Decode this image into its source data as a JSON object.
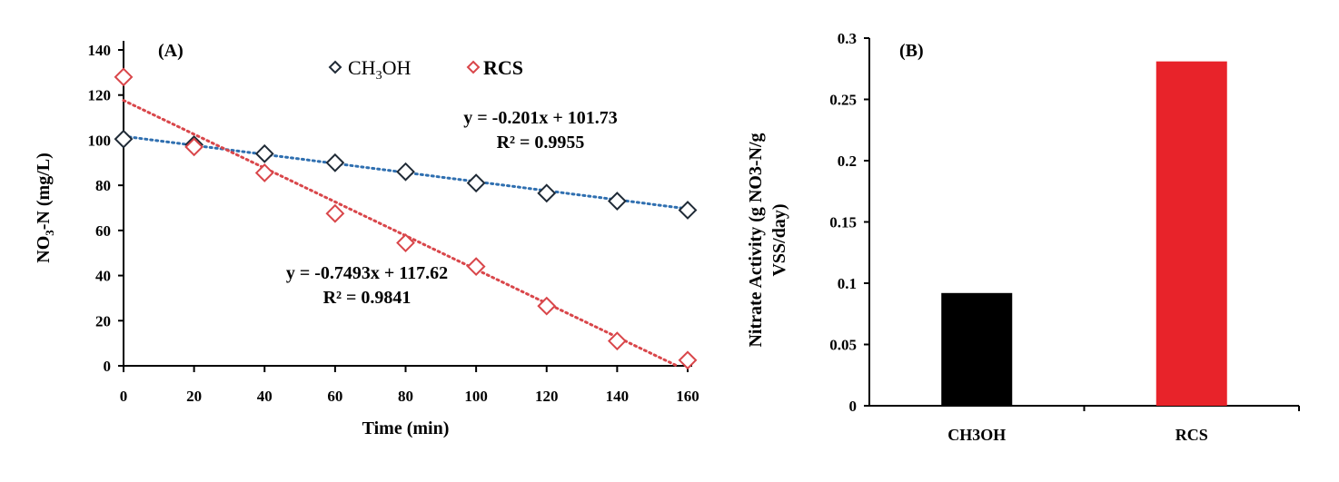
{
  "chart_data": [
    {
      "type": "scatter",
      "panel_label": "(A)",
      "xlabel": "Time (min)",
      "ylabel": "NO3-N (mg/L)",
      "ylabel_main": "NO",
      "ylabel_sub": "3",
      "ylabel_rest": "-N (mg/L)",
      "xlim": [
        0,
        160
      ],
      "ylim": [
        0,
        140
      ],
      "xticks": [
        0,
        20,
        40,
        60,
        80,
        100,
        120,
        140,
        160
      ],
      "yticks": [
        0,
        20,
        40,
        60,
        80,
        100,
        120,
        140
      ],
      "grid": false,
      "legend_position": "top-center",
      "x": [
        0,
        20,
        40,
        60,
        80,
        100,
        120,
        140,
        160
      ],
      "series": [
        {
          "name": "CH3OH",
          "legend_main": "CH",
          "legend_sub": "3",
          "legend_rest": "OH",
          "color": "#1f2a36",
          "trend_color": "#2f6fb0",
          "values": [
            100.5,
            98,
            94,
            90,
            86,
            81,
            76.5,
            73,
            69
          ],
          "trendline": {
            "slope": -0.201,
            "intercept": 101.73,
            "equation": "y = -0.201x + 101.73",
            "r2": "R² = 0.9955"
          }
        },
        {
          "name": "RCS",
          "color": "#d9464a",
          "trend_color": "#d9464a",
          "values": [
            128,
            97,
            85.5,
            67.5,
            54.5,
            44,
            26.5,
            11,
            2.5
          ],
          "trendline": {
            "slope": -0.7493,
            "intercept": 117.62,
            "equation": "y = -0.7493x + 117.62",
            "r2": "R² = 0.9841"
          }
        }
      ]
    },
    {
      "type": "bar",
      "panel_label": "(B)",
      "ylabel_line1": "Nitrate Activity (g NO3-N/g",
      "ylabel_line2": "VSS/day)",
      "ylim": [
        0,
        0.3
      ],
      "yticks": [
        "0",
        "0.05",
        "0.1",
        "0.15",
        "0.2",
        "0.25",
        "0.3"
      ],
      "categories": [
        "CH3OH",
        "RCS"
      ],
      "values": [
        0.092,
        0.281
      ],
      "colors": [
        "#000000",
        "#e8232a"
      ],
      "grid": false
    }
  ]
}
